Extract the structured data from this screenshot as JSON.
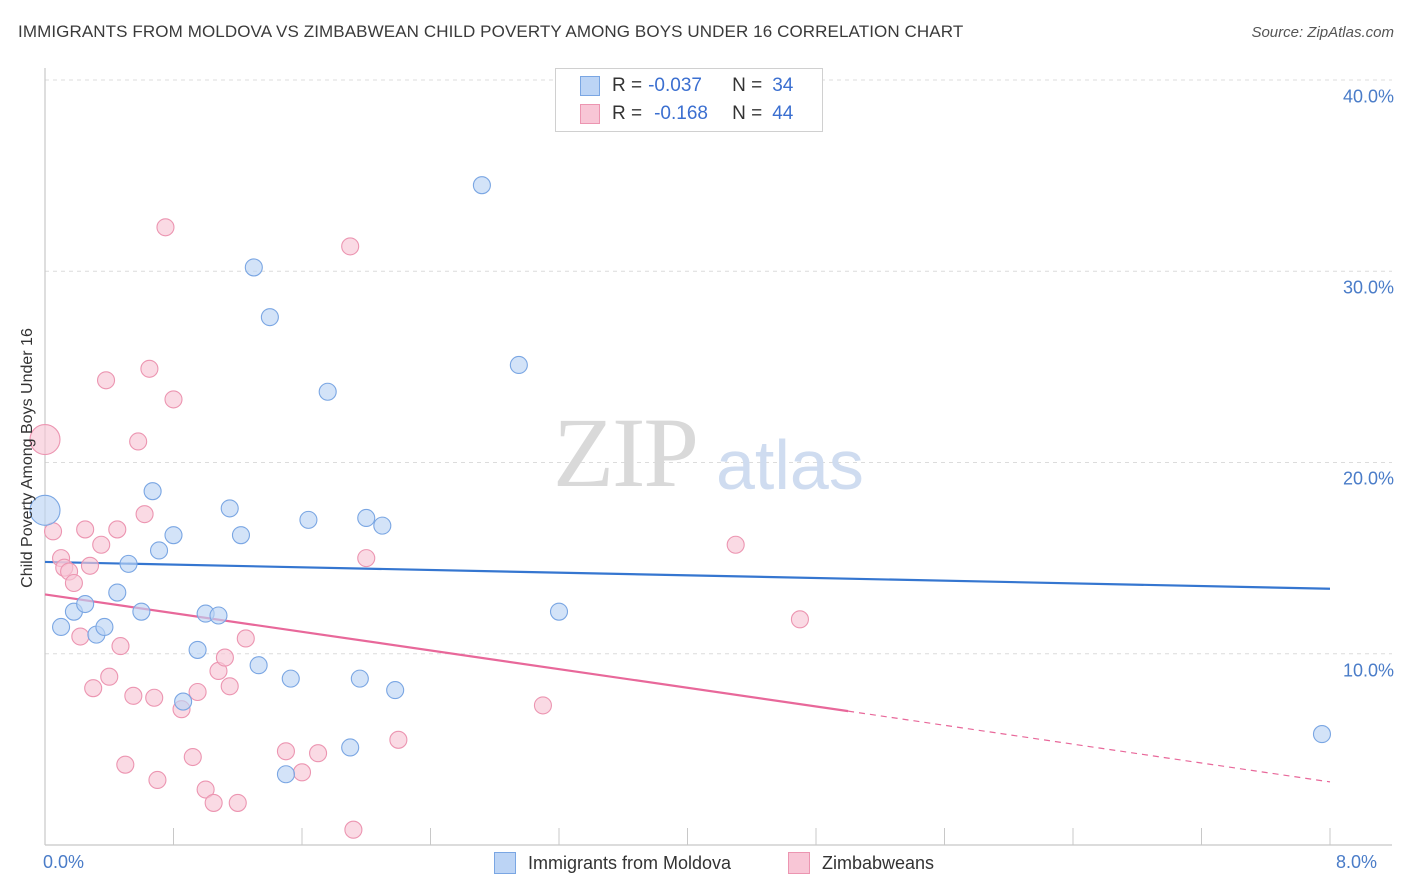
{
  "header": {
    "title": "IMMIGRANTS FROM MOLDOVA VS ZIMBABWEAN CHILD POVERTY AMONG BOYS UNDER 16 CORRELATION CHART",
    "source": "Source: ZipAtlas.com"
  },
  "watermark": {
    "zip": "ZIP",
    "atlas": "atlas"
  },
  "legend": {
    "r_label": "R =",
    "n_label": "N =",
    "series": [
      {
        "r": "-0.037",
        "n": "34"
      },
      {
        "r": "-0.168",
        "n": "44"
      }
    ]
  },
  "bottom_legend": [
    "Immigrants from Moldova",
    "Zimbabweans"
  ],
  "colors": {
    "blue_fill": "#bcd4f5",
    "blue_stroke": "#7aa6e3",
    "blue_line": "#3576d0",
    "pink_fill": "#f8c6d6",
    "pink_stroke": "#ec95b1",
    "pink_line": "#e8689a",
    "grid": "#dcdcdc",
    "tick_text": "#4a7cc8"
  },
  "chart_data": {
    "type": "scatter",
    "title": "IMMIGRANTS FROM MOLDOVA VS ZIMBABWEAN CHILD POVERTY AMONG BOYS UNDER 16 CORRELATION CHART",
    "xlabel": "",
    "ylabel": "Child Poverty Among Boys Under 16",
    "xlim": [
      0,
      8
    ],
    "ylim": [
      0,
      40
    ],
    "x_tick_labels": [
      "0.0%",
      "8.0%"
    ],
    "y_ticks": [
      10,
      20,
      30,
      40
    ],
    "y_tick_labels": [
      "10.0%",
      "20.0%",
      "30.0%",
      "40.0%"
    ],
    "grid": true,
    "series": [
      {
        "name": "Immigrants from Moldova",
        "r": -0.037,
        "n": 34,
        "points": [
          [
            0.0,
            17.5
          ],
          [
            0.1,
            11.4
          ],
          [
            0.18,
            12.2
          ],
          [
            0.25,
            12.6
          ],
          [
            0.32,
            11.0
          ],
          [
            0.37,
            11.4
          ],
          [
            0.45,
            13.2
          ],
          [
            0.52,
            14.7
          ],
          [
            0.6,
            12.2
          ],
          [
            0.67,
            18.5
          ],
          [
            0.71,
            15.4
          ],
          [
            0.8,
            16.2
          ],
          [
            0.86,
            7.5
          ],
          [
            0.95,
            10.2
          ],
          [
            1.0,
            12.1
          ],
          [
            1.08,
            12.0
          ],
          [
            1.15,
            17.6
          ],
          [
            1.22,
            16.2
          ],
          [
            1.3,
            30.2
          ],
          [
            1.33,
            9.4
          ],
          [
            1.4,
            27.6
          ],
          [
            1.5,
            3.7
          ],
          [
            1.53,
            8.7
          ],
          [
            1.64,
            17.0
          ],
          [
            1.76,
            23.7
          ],
          [
            1.9,
            5.1
          ],
          [
            1.96,
            8.7
          ],
          [
            2.0,
            17.1
          ],
          [
            2.1,
            16.7
          ],
          [
            2.18,
            8.1
          ],
          [
            2.72,
            34.5
          ],
          [
            2.95,
            25.1
          ],
          [
            3.2,
            12.2
          ],
          [
            7.95,
            5.8
          ]
        ],
        "trend": {
          "x": [
            0,
            8
          ],
          "y": [
            14.8,
            13.4
          ]
        }
      },
      {
        "name": "Zimbabweans",
        "r": -0.168,
        "n": 44,
        "points": [
          [
            0.0,
            21.2
          ],
          [
            0.05,
            16.4
          ],
          [
            0.1,
            15.0
          ],
          [
            0.12,
            14.5
          ],
          [
            0.15,
            14.3
          ],
          [
            0.18,
            13.7
          ],
          [
            0.22,
            10.9
          ],
          [
            0.25,
            16.5
          ],
          [
            0.28,
            14.6
          ],
          [
            0.3,
            8.2
          ],
          [
            0.35,
            15.7
          ],
          [
            0.38,
            24.3
          ],
          [
            0.4,
            8.8
          ],
          [
            0.45,
            16.5
          ],
          [
            0.47,
            10.4
          ],
          [
            0.5,
            4.2
          ],
          [
            0.55,
            7.8
          ],
          [
            0.58,
            21.1
          ],
          [
            0.62,
            17.3
          ],
          [
            0.65,
            24.9
          ],
          [
            0.68,
            7.7
          ],
          [
            0.7,
            3.4
          ],
          [
            0.75,
            32.3
          ],
          [
            0.8,
            23.3
          ],
          [
            0.85,
            7.1
          ],
          [
            0.92,
            4.6
          ],
          [
            0.95,
            8.0
          ],
          [
            1.0,
            2.9
          ],
          [
            1.05,
            2.2
          ],
          [
            1.08,
            9.1
          ],
          [
            1.12,
            9.8
          ],
          [
            1.15,
            8.3
          ],
          [
            1.2,
            2.2
          ],
          [
            1.25,
            10.8
          ],
          [
            1.5,
            4.9
          ],
          [
            1.6,
            3.8
          ],
          [
            1.7,
            4.8
          ],
          [
            1.9,
            31.3
          ],
          [
            1.92,
            0.8
          ],
          [
            2.0,
            15.0
          ],
          [
            2.2,
            5.5
          ],
          [
            3.1,
            7.3
          ],
          [
            4.3,
            15.7
          ],
          [
            4.7,
            11.8
          ]
        ],
        "trend": {
          "x": [
            0,
            5.0
          ],
          "y": [
            13.1,
            7.0
          ]
        },
        "trend_extension": {
          "x": [
            5.0,
            8
          ],
          "y": [
            7.0,
            3.3
          ]
        }
      }
    ]
  }
}
